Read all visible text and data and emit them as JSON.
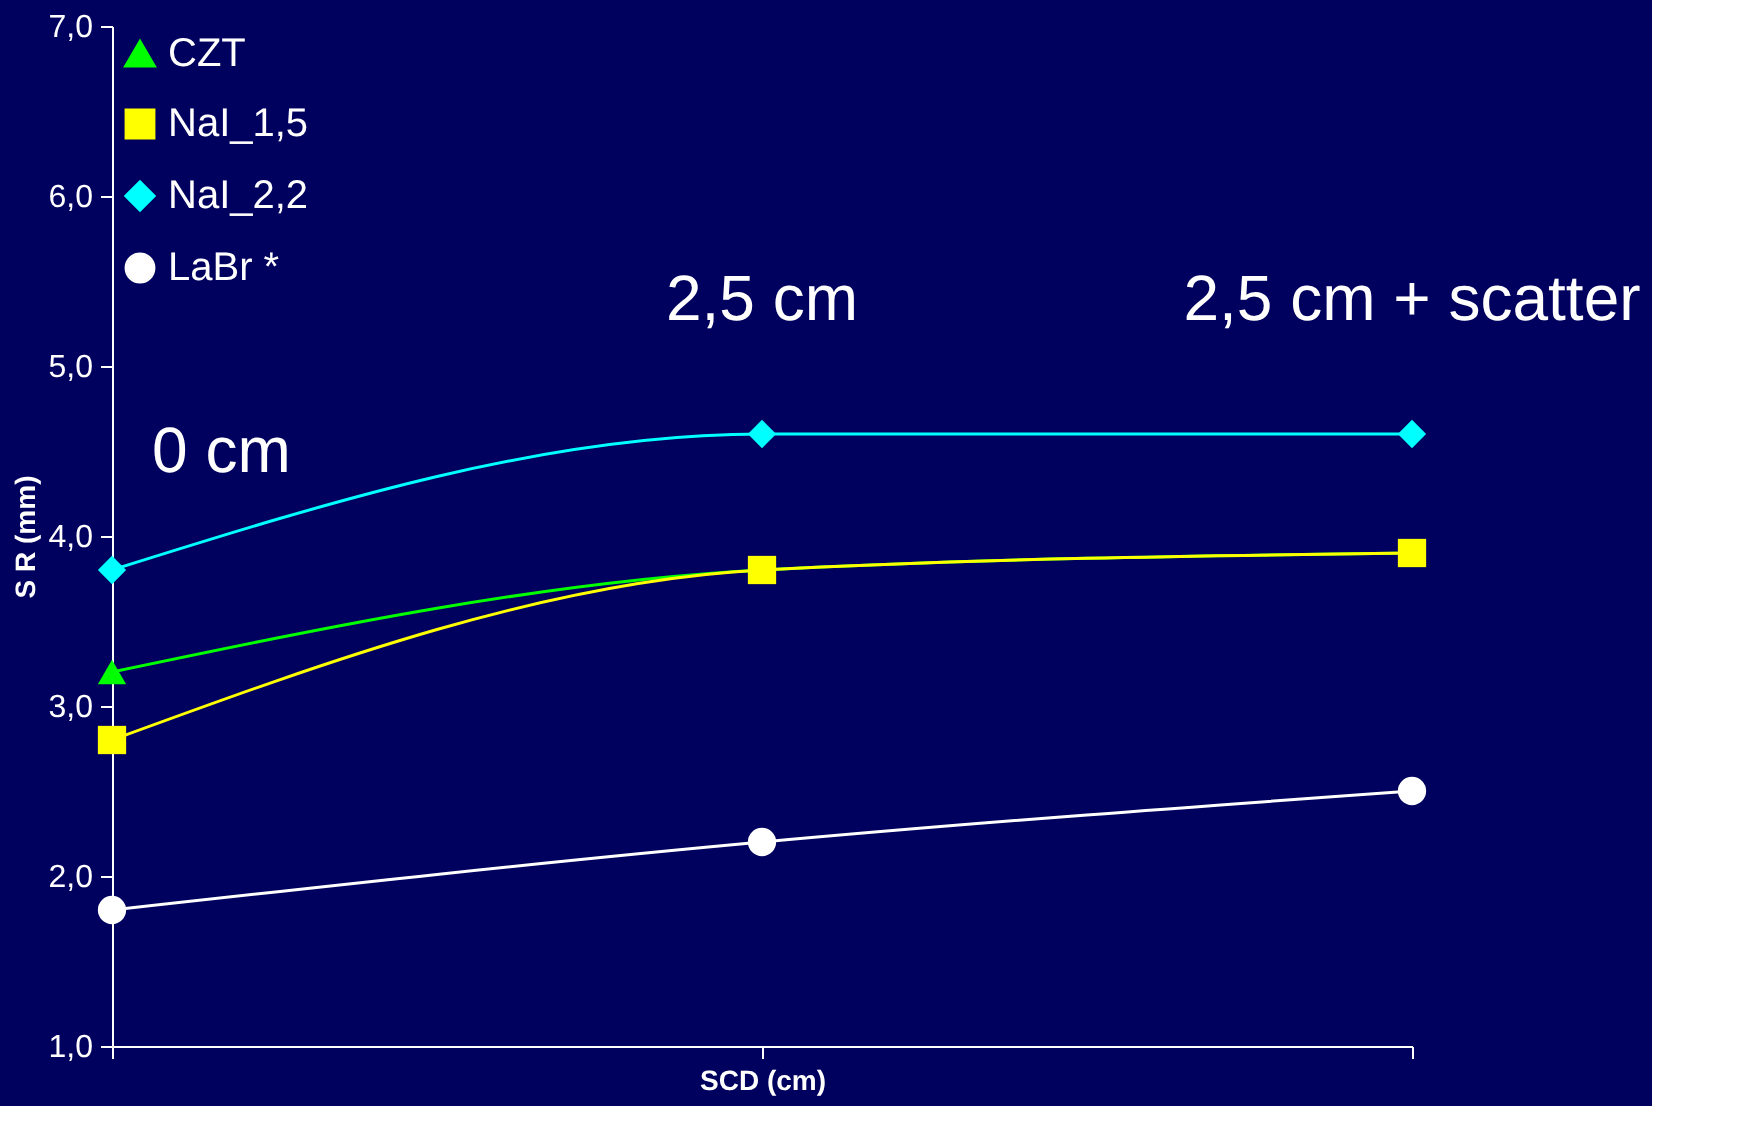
{
  "chart_data": {
    "type": "line",
    "xlabel": "SCD (cm)",
    "ylabel": "S R (mm)",
    "categories": [
      null,
      null,
      null
    ],
    "ylim": [
      1,
      7
    ],
    "yticks": [
      {
        "value": 1,
        "label": "1,0"
      },
      {
        "value": 2,
        "label": "2,0"
      },
      {
        "value": 3,
        "label": "3,0"
      },
      {
        "value": 4,
        "label": "4,0"
      },
      {
        "value": 5,
        "label": "5,0"
      },
      {
        "value": 6,
        "label": "6,0"
      },
      {
        "value": 7,
        "label": "7,0"
      }
    ],
    "tick_labels": "y",
    "grid": false,
    "legend": "top left",
    "line_style": "solid",
    "series": [
      {
        "name": "CZT",
        "color": "#00ff00",
        "marker": "triangle",
        "values": [
          3.2,
          3.8,
          3.9
        ]
      },
      {
        "name": "NaI_1,5",
        "color": "#ffff00",
        "marker": "square",
        "values": [
          2.8,
          3.8,
          3.9
        ]
      },
      {
        "name": "NaI_2,2",
        "color": "#00ffff",
        "marker": "diamond",
        "values": [
          3.8,
          4.6,
          4.6
        ]
      },
      {
        "name": "LaBr *",
        "color": "#ffffff",
        "marker": "circle",
        "values": [
          1.8,
          2.2,
          2.5
        ]
      }
    ],
    "annotations": [
      "0 cm",
      "2,5 cm",
      "2,5 cm + scatter"
    ]
  }
}
